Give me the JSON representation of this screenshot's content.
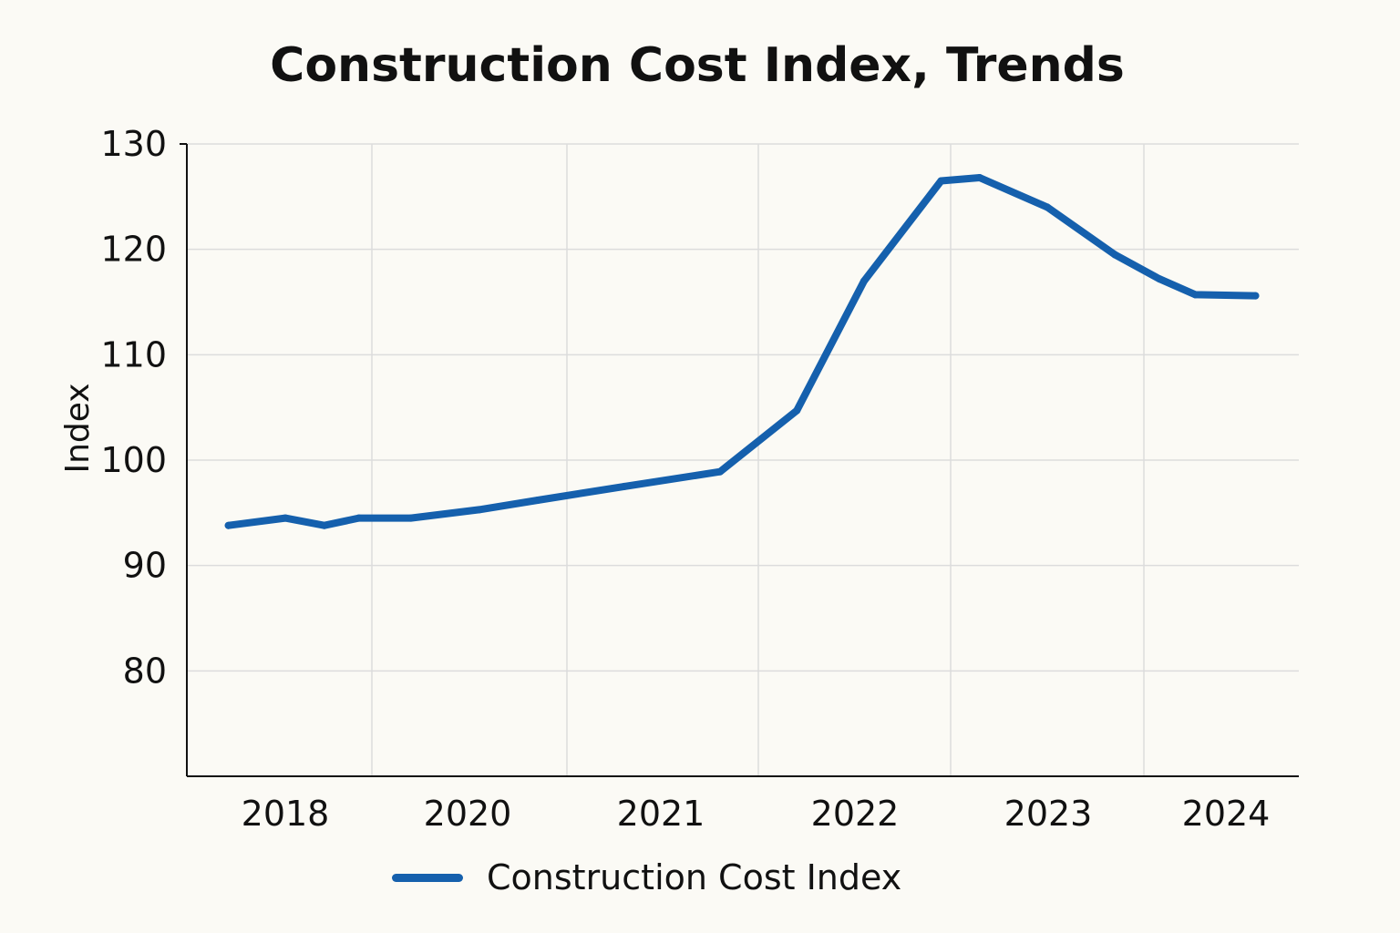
{
  "chart_data": {
    "type": "line",
    "title": "Construction Cost Index, Trends",
    "xlabel": "",
    "ylabel": "Index",
    "ylim": [
      70,
      130
    ],
    "y_ticks": [
      80,
      90,
      100,
      110,
      120,
      130
    ],
    "x_tick_labels": [
      "2018",
      "2020",
      "2021",
      "2022",
      "2023",
      "2024"
    ],
    "grid": true,
    "legend_position": "bottom",
    "color": "#1560ad",
    "series": [
      {
        "name": "Construction Cost Index",
        "x": [
          2017.6,
          2018.0,
          2018.45,
          2018.85,
          2019.2,
          2019.55,
          2019.85,
          2020.3,
          2020.8,
          2021.2,
          2021.55,
          2021.95,
          2022.15,
          2022.5,
          2022.85,
          2023.15,
          2023.5,
          2024.05
        ],
        "values": [
          93.8,
          94.5,
          93.8,
          94.5,
          94.5,
          95.3,
          96.2,
          97.5,
          98.9,
          104.7,
          117.0,
          126.5,
          126.8,
          124.0,
          119.5,
          117.2,
          115.7,
          115.6
        ]
      }
    ]
  }
}
